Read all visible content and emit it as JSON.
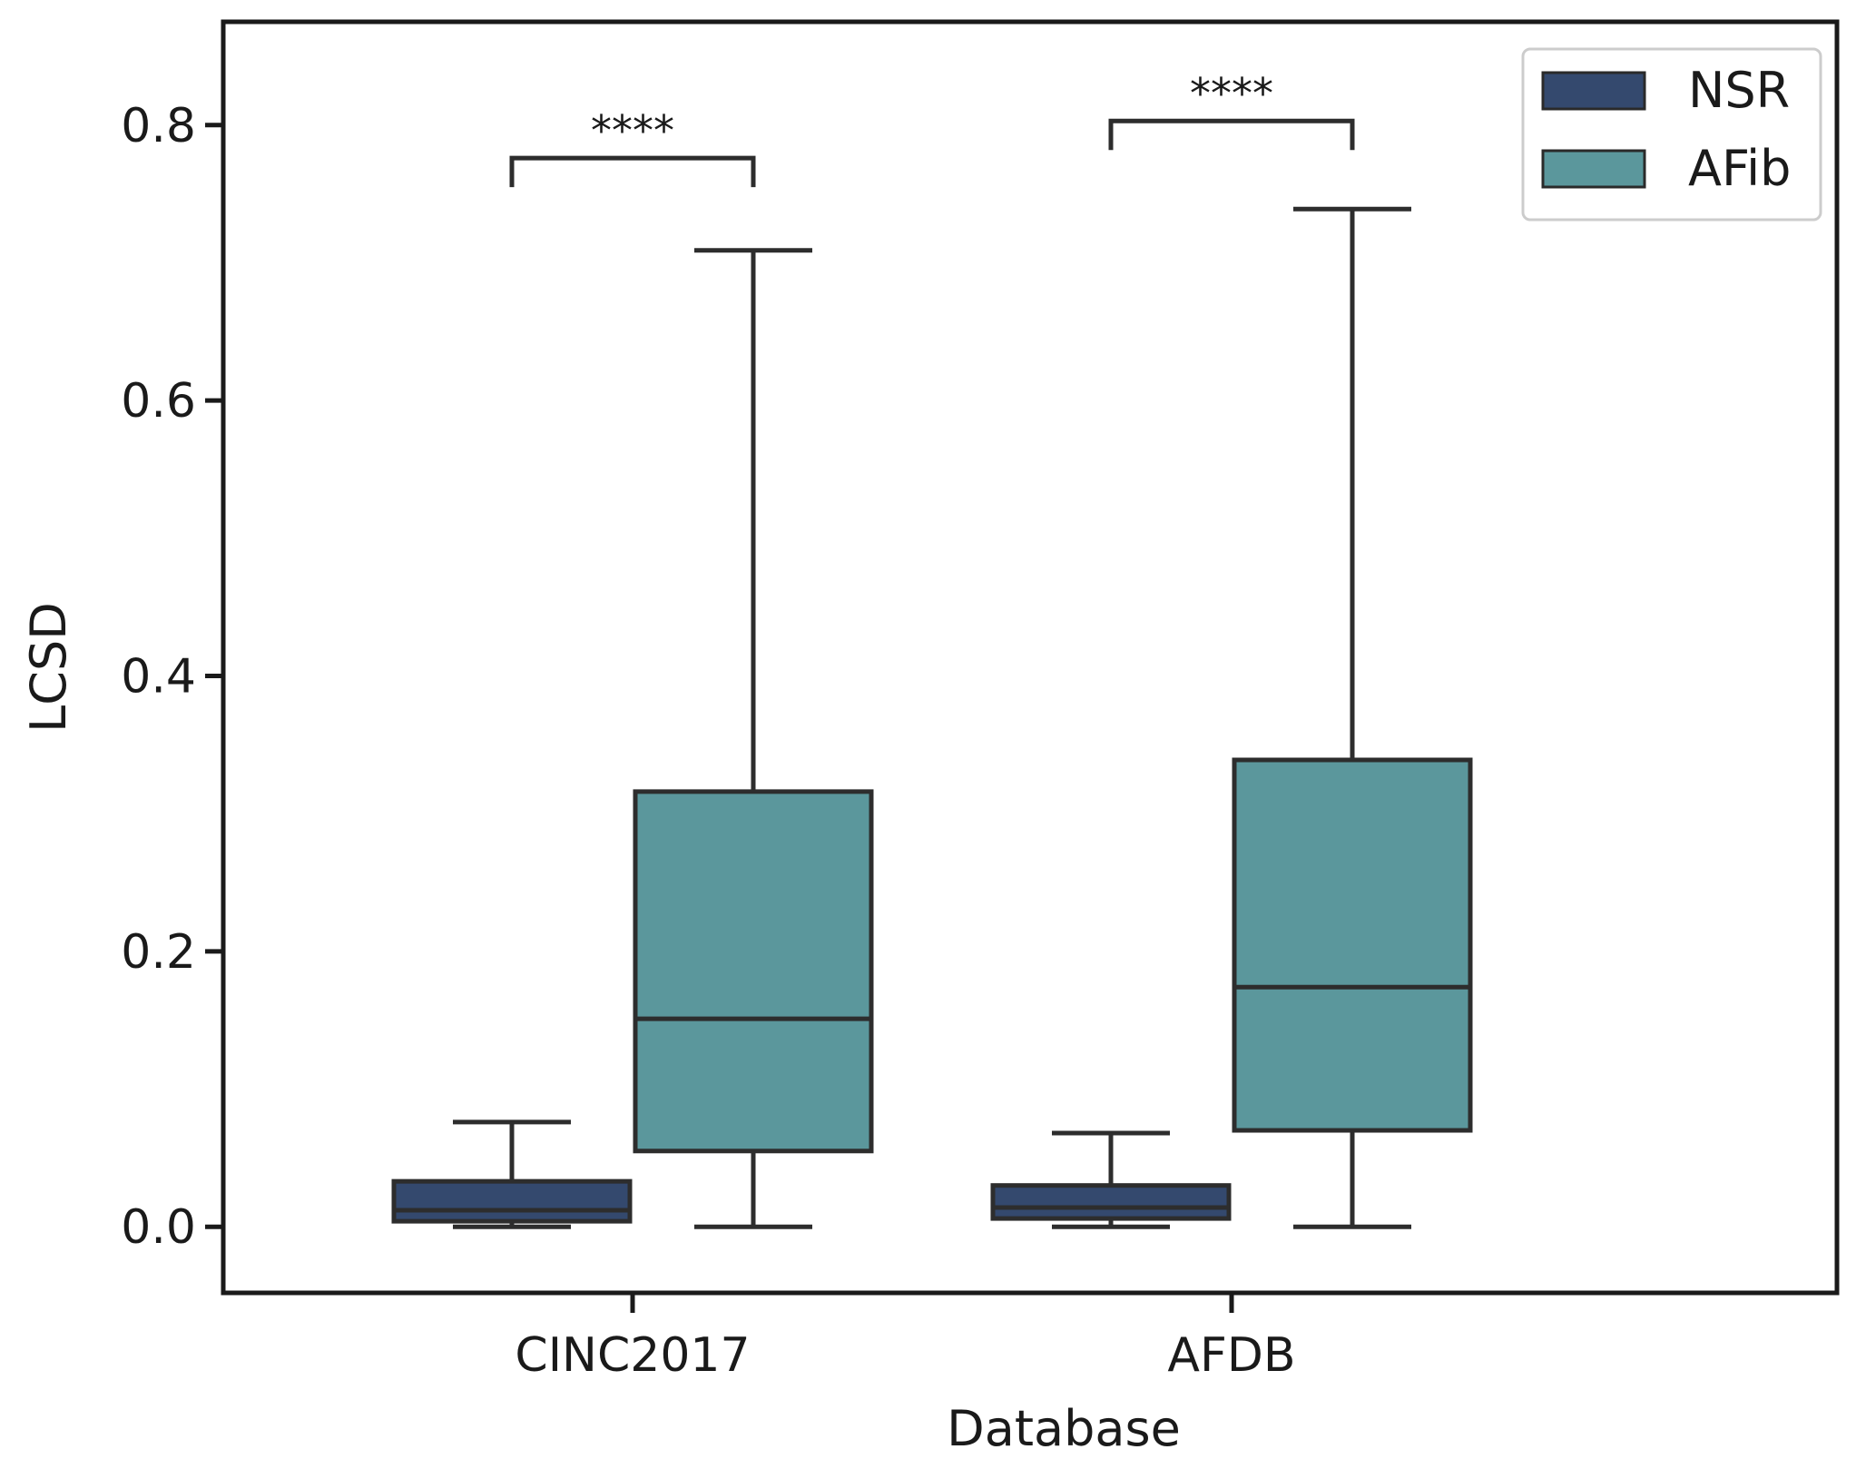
{
  "chart_data": {
    "type": "box",
    "title": "",
    "xlabel": "Database",
    "ylabel": "LCSD",
    "ylim": [
      -0.048,
      0.875
    ],
    "yticks": [
      0.0,
      0.2,
      0.4,
      0.6,
      0.8
    ],
    "ytick_labels": [
      "0.0",
      "0.2",
      "0.4",
      "0.6",
      "0.8"
    ],
    "categories": [
      "CINC2017",
      "AFDB"
    ],
    "legend_position": "top-right",
    "series": [
      {
        "name": "NSR",
        "color": "#34496e",
        "boxes": [
          {
            "category": "CINC2017",
            "whisker_low": 0.0,
            "q1": 0.004,
            "median": 0.012,
            "q3": 0.033,
            "whisker_high": 0.076
          },
          {
            "category": "AFDB",
            "whisker_low": 0.0,
            "q1": 0.006,
            "median": 0.014,
            "q3": 0.03,
            "whisker_high": 0.068
          }
        ]
      },
      {
        "name": "AFib",
        "color": "#5b979c",
        "boxes": [
          {
            "category": "CINC2017",
            "whisker_low": 0.0,
            "q1": 0.055,
            "median": 0.151,
            "q3": 0.316,
            "whisker_high": 0.709
          },
          {
            "category": "AFDB",
            "whisker_low": 0.0,
            "q1": 0.07,
            "median": 0.174,
            "q3": 0.339,
            "whisker_high": 0.739
          }
        ]
      }
    ],
    "annotations": [
      {
        "category": "CINC2017",
        "text": "****",
        "bracket_y": 0.776
      },
      {
        "category": "AFDB",
        "text": "****",
        "bracket_y": 0.803
      }
    ]
  }
}
